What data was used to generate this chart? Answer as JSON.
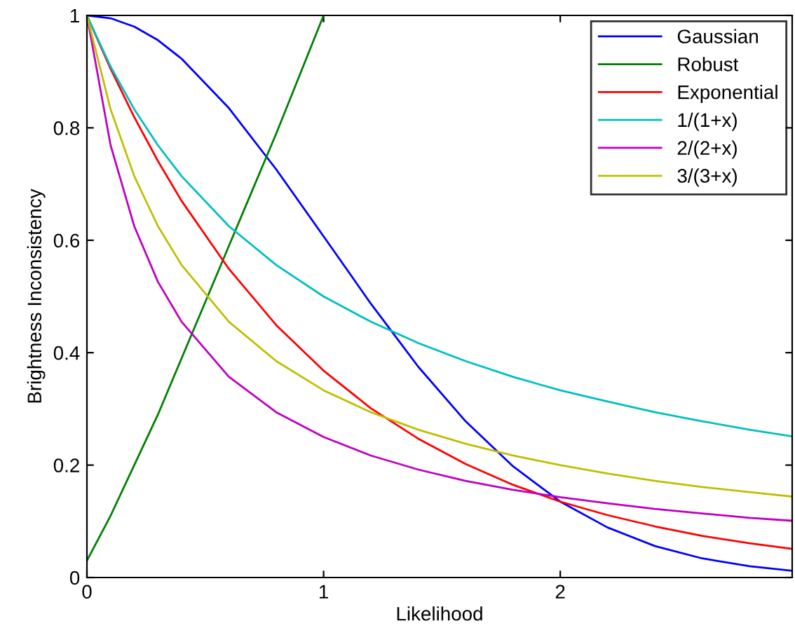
{
  "chart_data": {
    "type": "line",
    "xlabel": "Likelihood",
    "ylabel": "Brightness Inconsistency",
    "x": [
      0,
      0.1,
      0.2,
      0.3,
      0.4,
      0.6,
      0.8,
      1.0,
      1.2,
      1.4,
      1.6,
      1.8,
      2.0,
      2.2,
      2.4,
      2.6,
      2.8,
      2.98
    ],
    "series": [
      {
        "name": "Gaussian",
        "color": "#0000ff",
        "values": [
          1,
          0.995,
          0.98,
          0.956,
          0.923,
          0.835,
          0.726,
          0.607,
          0.487,
          0.375,
          0.278,
          0.198,
          0.135,
          0.089,
          0.056,
          0.034,
          0.02,
          0.012
        ]
      },
      {
        "name": "Robust",
        "color": "#008000",
        "x": [
          0,
          0.1,
          0.2,
          0.3,
          0.4,
          0.5,
          0.6,
          0.7,
          0.8,
          0.9,
          1.0
        ],
        "values": [
          0.03,
          0.11,
          0.2,
          0.29,
          0.39,
          0.49,
          0.59,
          0.69,
          0.79,
          0.895,
          1
        ]
      },
      {
        "name": "Exponential",
        "color": "#ff0000",
        "values": [
          1,
          0.905,
          0.819,
          0.741,
          0.67,
          0.549,
          0.449,
          0.368,
          0.301,
          0.247,
          0.202,
          0.165,
          0.135,
          0.111,
          0.091,
          0.074,
          0.061,
          0.051
        ]
      },
      {
        "name": "1/(1+x)",
        "color": "#00bfbf",
        "values": [
          1,
          0.909,
          0.833,
          0.769,
          0.714,
          0.625,
          0.556,
          0.5,
          0.455,
          0.417,
          0.385,
          0.357,
          0.333,
          0.313,
          0.294,
          0.278,
          0.263,
          0.251
        ]
      },
      {
        "name": "2/(2+x)",
        "color": "#bf00bf",
        "values": [
          1,
          0.769,
          0.625,
          0.526,
          0.455,
          0.357,
          0.294,
          0.25,
          0.217,
          0.192,
          0.172,
          0.156,
          0.143,
          0.132,
          0.122,
          0.114,
          0.106,
          0.101
        ]
      },
      {
        "name": "3/(3+x)",
        "color": "#bfbf00",
        "values": [
          1,
          0.833,
          0.714,
          0.625,
          0.556,
          0.455,
          0.385,
          0.333,
          0.294,
          0.263,
          0.238,
          0.217,
          0.2,
          0.185,
          0.172,
          0.161,
          0.152,
          0.144
        ]
      }
    ],
    "xlim": [
      0,
      2.98
    ],
    "xticks": [
      0,
      1,
      2
    ],
    "ylim": [
      0,
      1
    ],
    "yticks": [
      0,
      0.2,
      0.4,
      0.6,
      0.8,
      1
    ],
    "legend": "top right",
    "grid": false,
    "marker": "none",
    "line_style": "solid"
  }
}
